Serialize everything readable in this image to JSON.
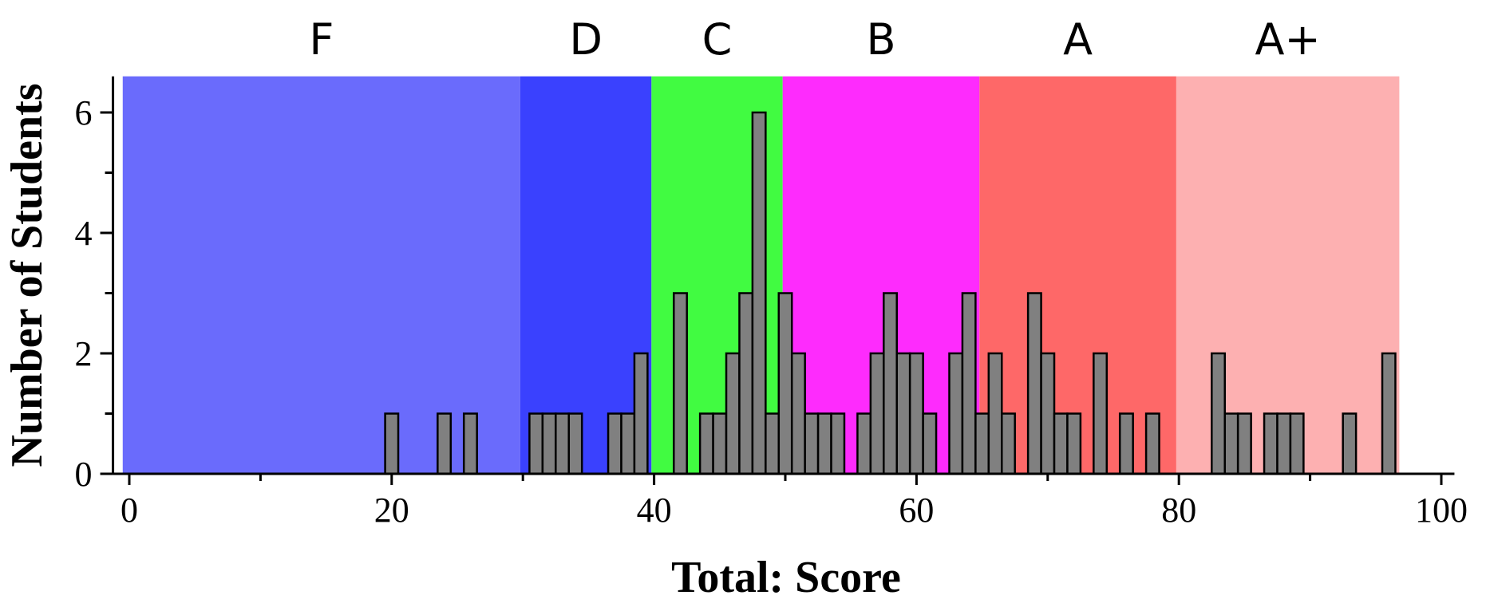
{
  "chart_data": {
    "type": "bar",
    "xlabel": "Total: Score",
    "ylabel": "Number of Students",
    "xlim": [
      -1,
      101
    ],
    "ylim": [
      0,
      6.6
    ],
    "x_ticks": [
      0,
      20,
      40,
      60,
      80,
      100
    ],
    "y_ticks": [
      0,
      2,
      4,
      6
    ],
    "grid": false,
    "bar_color": "#808080",
    "grade_bands": [
      {
        "label": "F",
        "start": -0.5,
        "end": 29.8,
        "color": "#6a6bfc"
      },
      {
        "label": "D",
        "start": 29.8,
        "end": 39.8,
        "color": "#3a41fe"
      },
      {
        "label": "C",
        "start": 39.8,
        "end": 49.8,
        "color": "#41fb41"
      },
      {
        "label": "B",
        "start": 49.8,
        "end": 64.8,
        "color": "#fe2bfd"
      },
      {
        "label": "A",
        "start": 64.8,
        "end": 79.8,
        "color": "#fe6868"
      },
      {
        "label": "A+",
        "start": 79.8,
        "end": 96.8,
        "color": "#fdb0b1"
      }
    ],
    "bin_width": 1,
    "bins": [
      {
        "x": 20,
        "count": 1
      },
      {
        "x": 24,
        "count": 1
      },
      {
        "x": 26,
        "count": 1
      },
      {
        "x": 31,
        "count": 1
      },
      {
        "x": 32,
        "count": 1
      },
      {
        "x": 33,
        "count": 1
      },
      {
        "x": 34,
        "count": 1
      },
      {
        "x": 37,
        "count": 1
      },
      {
        "x": 38,
        "count": 1
      },
      {
        "x": 39,
        "count": 2
      },
      {
        "x": 42,
        "count": 3
      },
      {
        "x": 44,
        "count": 1
      },
      {
        "x": 45,
        "count": 1
      },
      {
        "x": 46,
        "count": 2
      },
      {
        "x": 47,
        "count": 3
      },
      {
        "x": 48,
        "count": 6
      },
      {
        "x": 49,
        "count": 1
      },
      {
        "x": 50,
        "count": 3
      },
      {
        "x": 51,
        "count": 2
      },
      {
        "x": 52,
        "count": 1
      },
      {
        "x": 53,
        "count": 1
      },
      {
        "x": 54,
        "count": 1
      },
      {
        "x": 56,
        "count": 1
      },
      {
        "x": 57,
        "count": 2
      },
      {
        "x": 58,
        "count": 3
      },
      {
        "x": 59,
        "count": 2
      },
      {
        "x": 60,
        "count": 2
      },
      {
        "x": 61,
        "count": 1
      },
      {
        "x": 63,
        "count": 2
      },
      {
        "x": 64,
        "count": 3
      },
      {
        "x": 65,
        "count": 1
      },
      {
        "x": 66,
        "count": 2
      },
      {
        "x": 67,
        "count": 1
      },
      {
        "x": 69,
        "count": 3
      },
      {
        "x": 70,
        "count": 2
      },
      {
        "x": 71,
        "count": 1
      },
      {
        "x": 72,
        "count": 1
      },
      {
        "x": 74,
        "count": 2
      },
      {
        "x": 76,
        "count": 1
      },
      {
        "x": 78,
        "count": 1
      },
      {
        "x": 83,
        "count": 2
      },
      {
        "x": 84,
        "count": 1
      },
      {
        "x": 85,
        "count": 1
      },
      {
        "x": 87,
        "count": 1
      },
      {
        "x": 88,
        "count": 1
      },
      {
        "x": 89,
        "count": 1
      },
      {
        "x": 93,
        "count": 1
      },
      {
        "x": 96,
        "count": 2
      }
    ]
  }
}
